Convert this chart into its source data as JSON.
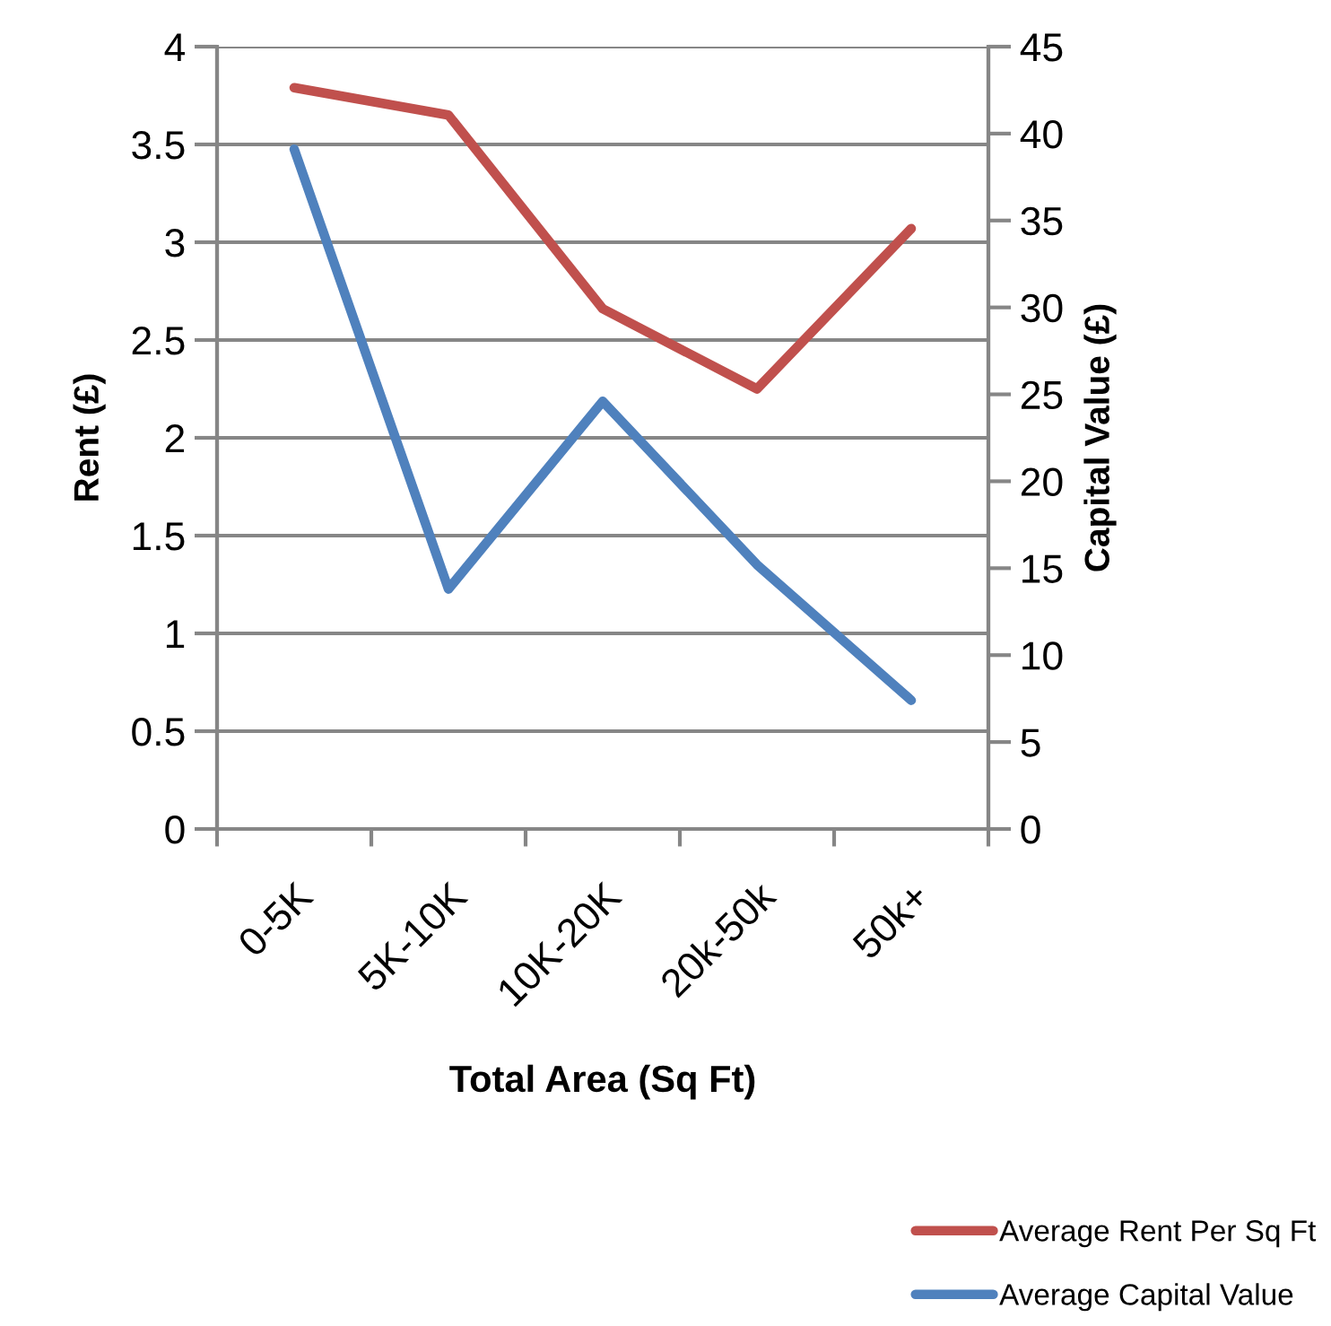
{
  "chart_data": {
    "type": "line",
    "xlabel": "Total Area (Sq Ft)",
    "ylabel": "Rent (£)",
    "y2label": "Capital Value (£)",
    "categories": [
      "0-5K",
      "5K-10K",
      "10K-20K",
      "20k-50k",
      "50k+"
    ],
    "series": [
      {
        "name": "Average Rent Per Sq Ft",
        "color": "#c0504d",
        "values": [
          3.79,
          3.65,
          2.66,
          2.25,
          3.07
        ]
      },
      {
        "name": "Average Capital Value",
        "color": "#4f81bd",
        "axis": "y2",
        "values": [
          39.1,
          13.8,
          24.6,
          15.2,
          7.4
        ]
      }
    ],
    "ylim": [
      0,
      4
    ],
    "yticks": [
      0,
      0.5,
      1,
      1.5,
      2,
      2.5,
      3,
      3.5,
      4
    ],
    "y2lim": [
      0,
      45
    ],
    "y2ticks": [
      0,
      5,
      10,
      15,
      20,
      25,
      30,
      35,
      40,
      45
    ],
    "grid": "y",
    "legend": "bottom right",
    "line_style": "solid"
  }
}
